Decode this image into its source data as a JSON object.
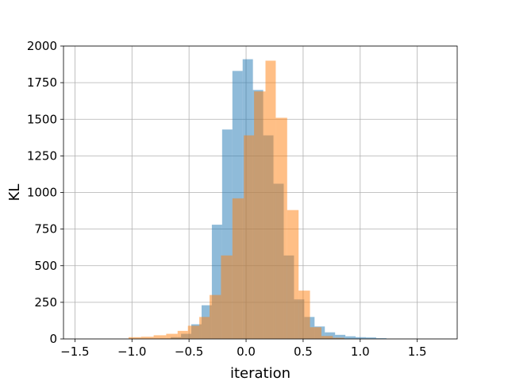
{
  "chart_data": {
    "type": "histogram",
    "xlabel": "iteration",
    "ylabel": "KL",
    "xlim": [
      -1.6,
      1.85
    ],
    "ylim": [
      0,
      2000
    ],
    "xticks": [
      -1.5,
      -1.0,
      -0.5,
      0.0,
      0.5,
      1.0,
      1.5
    ],
    "xtick_labels": [
      "−1.5",
      "−1.0",
      "−0.5",
      "0.0",
      "0.5",
      "1.0",
      "1.5"
    ],
    "yticks": [
      0,
      250,
      500,
      750,
      1000,
      1250,
      1500,
      1750,
      2000
    ],
    "ytick_labels": [
      "0",
      "250",
      "500",
      "750",
      "1000",
      "1250",
      "1500",
      "1750",
      "2000"
    ],
    "grid": true,
    "series": [
      {
        "color": "#1f77b4",
        "opacity": 0.5,
        "bins": [
          {
            "x0": -0.75,
            "x1": -0.66,
            "count": 3
          },
          {
            "x0": -0.66,
            "x1": -0.57,
            "count": 12
          },
          {
            "x0": -0.57,
            "x1": -0.48,
            "count": 35
          },
          {
            "x0": -0.48,
            "x1": -0.39,
            "count": 100
          },
          {
            "x0": -0.39,
            "x1": -0.3,
            "count": 230
          },
          {
            "x0": -0.3,
            "x1": -0.21,
            "count": 780
          },
          {
            "x0": -0.21,
            "x1": -0.12,
            "count": 1430
          },
          {
            "x0": -0.12,
            "x1": -0.03,
            "count": 1830
          },
          {
            "x0": -0.03,
            "x1": 0.06,
            "count": 1910
          },
          {
            "x0": 0.06,
            "x1": 0.15,
            "count": 1700
          },
          {
            "x0": 0.15,
            "x1": 0.24,
            "count": 1390
          },
          {
            "x0": 0.24,
            "x1": 0.33,
            "count": 1060
          },
          {
            "x0": 0.33,
            "x1": 0.42,
            "count": 570
          },
          {
            "x0": 0.42,
            "x1": 0.51,
            "count": 270
          },
          {
            "x0": 0.51,
            "x1": 0.6,
            "count": 150
          },
          {
            "x0": 0.6,
            "x1": 0.69,
            "count": 85
          },
          {
            "x0": 0.69,
            "x1": 0.78,
            "count": 45
          },
          {
            "x0": 0.78,
            "x1": 0.87,
            "count": 28
          },
          {
            "x0": 0.87,
            "x1": 0.96,
            "count": 18
          },
          {
            "x0": 0.96,
            "x1": 1.05,
            "count": 12
          },
          {
            "x0": 1.05,
            "x1": 1.14,
            "count": 10
          },
          {
            "x0": 1.14,
            "x1": 1.23,
            "count": 5
          }
        ]
      },
      {
        "color": "#ff7f0e",
        "opacity": 0.5,
        "bins": [
          {
            "x0": -1.03,
            "x1": -0.92,
            "count": 12
          },
          {
            "x0": -0.92,
            "x1": -0.81,
            "count": 15
          },
          {
            "x0": -0.81,
            "x1": -0.7,
            "count": 25
          },
          {
            "x0": -0.7,
            "x1": -0.6,
            "count": 35
          },
          {
            "x0": -0.6,
            "x1": -0.51,
            "count": 55
          },
          {
            "x0": -0.51,
            "x1": -0.41,
            "count": 90
          },
          {
            "x0": -0.41,
            "x1": -0.32,
            "count": 150
          },
          {
            "x0": -0.32,
            "x1": -0.22,
            "count": 300
          },
          {
            "x0": -0.22,
            "x1": -0.12,
            "count": 570
          },
          {
            "x0": -0.12,
            "x1": -0.02,
            "count": 960
          },
          {
            "x0": -0.02,
            "x1": 0.07,
            "count": 1390
          },
          {
            "x0": 0.07,
            "x1": 0.17,
            "count": 1690
          },
          {
            "x0": 0.17,
            "x1": 0.26,
            "count": 1900
          },
          {
            "x0": 0.26,
            "x1": 0.36,
            "count": 1510
          },
          {
            "x0": 0.36,
            "x1": 0.46,
            "count": 880
          },
          {
            "x0": 0.46,
            "x1": 0.56,
            "count": 330
          },
          {
            "x0": 0.56,
            "x1": 0.66,
            "count": 80
          },
          {
            "x0": 0.66,
            "x1": 0.76,
            "count": 20
          },
          {
            "x0": 0.76,
            "x1": 0.86,
            "count": 8
          }
        ]
      }
    ]
  }
}
